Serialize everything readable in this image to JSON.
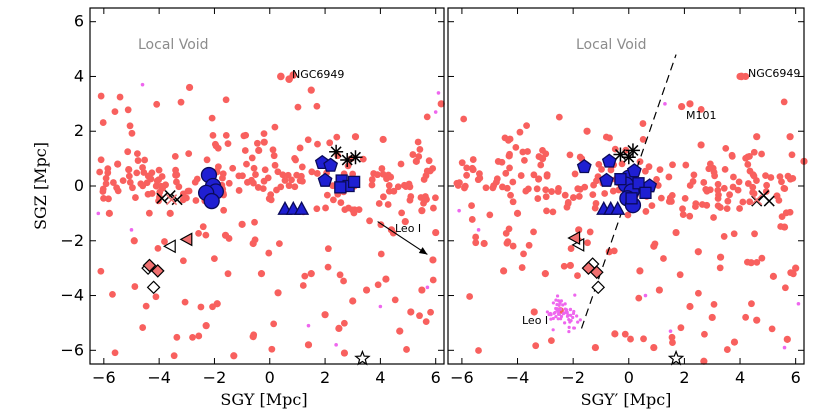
{
  "chart_data": [
    {
      "type": "scatter",
      "panel": "left",
      "xlabel": "SGY  [Mpc]",
      "ylabel": "SGZ  [Mpc]",
      "xlim": [
        -6.5,
        6.3
      ],
      "ylim": [
        -6.5,
        6.5
      ],
      "xticks": [
        "−6",
        "−4",
        "−2",
        "0",
        "2",
        "4",
        "6"
      ],
      "yticks": [
        "6",
        "4",
        "2",
        "0",
        "−2",
        "−4",
        "−6"
      ],
      "annotations": {
        "region": "Local Void",
        "ngc": "NGC6949",
        "leo": "Leo I"
      },
      "arrow": {
        "from": [
          3.9,
          -1.3
        ],
        "to": [
          5.7,
          -2.5
        ]
      },
      "background_seed": 7,
      "background_count": 260,
      "background": [
        [
          -2.9,
          3.6
        ],
        [
          -0.4,
          1.3
        ],
        [
          -0.2,
          1.6
        ],
        [
          1.5,
          3.5
        ],
        [
          3.1,
          1.8
        ],
        [
          4.1,
          1.7
        ],
        [
          5.3,
          0.9
        ],
        [
          6.2,
          3.0
        ],
        [
          4.4,
          -1.6
        ],
        [
          4.9,
          -1.3
        ],
        [
          5.5,
          -0.9
        ],
        [
          6.0,
          -1.7
        ],
        [
          -5.1,
          0.6
        ],
        [
          -5.5,
          0.8
        ],
        [
          -4.1,
          0.0
        ],
        [
          -3.4,
          0.4
        ],
        [
          -1.6,
          -1.8
        ],
        [
          -1.0,
          -1.4
        ],
        [
          -0.6,
          -2.1
        ],
        [
          1.5,
          -3.2
        ],
        [
          2.0,
          -4.7
        ],
        [
          2.5,
          -5.2
        ],
        [
          1.4,
          -5.8
        ],
        [
          3.0,
          -4.2
        ],
        [
          3.5,
          -3.8
        ],
        [
          4.2,
          -3.4
        ],
        [
          5.5,
          -3.8
        ],
        [
          5.1,
          -4.6
        ],
        [
          -1.9,
          -4.3
        ],
        [
          -2.3,
          -5.1
        ],
        [
          -0.6,
          -5.5
        ],
        [
          -1.3,
          -6.2
        ],
        [
          2.7,
          -6.1
        ],
        [
          0.3,
          -3.9
        ],
        [
          -0.3,
          -3.2
        ],
        [
          4.7,
          -5.3
        ],
        [
          5.9,
          -2.7
        ],
        [
          -5.8,
          -1.0
        ],
        [
          -4.9,
          -2.0
        ],
        [
          -3.6,
          -1.0
        ]
      ],
      "satellites": [
        [
          -6.2,
          -1.0
        ],
        [
          -5.0,
          -1.6
        ],
        [
          1.4,
          -5.1
        ],
        [
          2.4,
          -5.8
        ],
        [
          4.0,
          -4.4
        ],
        [
          5.7,
          -3.7
        ],
        [
          6.0,
          2.7
        ],
        [
          6.1,
          3.4
        ],
        [
          -4.6,
          3.7
        ]
      ],
      "ngc_points": [
        [
          0.4,
          4.0
        ],
        [
          0.7,
          3.9
        ],
        [
          0.85,
          4.05
        ]
      ],
      "groups": {
        "circles": [
          [
            -2.2,
            0.4
          ],
          [
            -2.05,
            0.0
          ],
          [
            -1.95,
            -0.2
          ],
          [
            -2.3,
            -0.25
          ],
          [
            -2.1,
            -0.55
          ]
        ],
        "pentagons": [
          [
            1.9,
            0.85
          ],
          [
            2.2,
            0.75
          ],
          [
            2.0,
            0.2
          ]
        ],
        "squares": [
          [
            2.6,
            0.2
          ],
          [
            2.85,
            0.0
          ],
          [
            3.05,
            0.15
          ],
          [
            2.55,
            -0.05
          ]
        ],
        "triangles": [
          [
            0.55,
            -0.85
          ],
          [
            0.85,
            -0.85
          ],
          [
            1.15,
            -0.85
          ]
        ],
        "asterisks": [
          [
            2.4,
            1.25
          ],
          [
            2.8,
            0.95
          ],
          [
            3.1,
            1.05
          ]
        ],
        "crosses": [
          [
            -3.9,
            -0.45
          ],
          [
            -3.6,
            -0.35
          ],
          [
            -3.35,
            -0.5
          ]
        ],
        "x_red": [
          [
            -3.55,
            -0.5
          ]
        ],
        "tri_left": [
          [
            -3.6,
            -2.2
          ]
        ],
        "tri_left_red": [
          [
            -3.0,
            -1.95
          ]
        ],
        "diamonds": [
          [
            -4.2,
            -3.7
          ],
          [
            -4.4,
            -3.0
          ]
        ],
        "diamonds_red": [
          [
            -4.35,
            -2.9
          ],
          [
            -4.05,
            -3.1
          ]
        ],
        "stars": [
          [
            3.35,
            -6.3
          ]
        ]
      }
    },
    {
      "type": "scatter",
      "panel": "right",
      "xlabel": "SGY′  [Mpc]",
      "ylabel": "",
      "xlim": [
        -6.5,
        6.3
      ],
      "ylim": [
        -6.5,
        6.5
      ],
      "xticks": [
        "−6",
        "−4",
        "−2",
        "0",
        "2",
        "4",
        "6"
      ],
      "annotations": {
        "region": "Local Void",
        "ngc": "NGC6949",
        "m101": "M101",
        "leo": "Leo I"
      },
      "dashed_line": {
        "from": [
          -1.7,
          -5.2
        ],
        "to": [
          1.7,
          4.8
        ]
      },
      "background_seed": 19,
      "background_count": 255,
      "background": [
        [
          4.0,
          4.0
        ],
        [
          4.2,
          4.0
        ],
        [
          1.9,
          2.9
        ],
        [
          2.2,
          3.0
        ],
        [
          2.6,
          1.5
        ],
        [
          4.6,
          1.8
        ],
        [
          5.8,
          1.8
        ],
        [
          6.3,
          0.9
        ],
        [
          -1.5,
          2.0
        ],
        [
          -3.1,
          1.0
        ],
        [
          -4.3,
          1.1
        ],
        [
          -5.6,
          0.6
        ],
        [
          -1.8,
          -1.6
        ],
        [
          -1.8,
          -2.0
        ],
        [
          -0.7,
          -2.4
        ],
        [
          0.9,
          -2.2
        ],
        [
          1.7,
          -1.7
        ],
        [
          2.5,
          -2.4
        ],
        [
          3.3,
          -2.6
        ],
        [
          4.4,
          -2.8
        ],
        [
          5.2,
          -3.3
        ],
        [
          6.0,
          -3.0
        ],
        [
          5.6,
          -1.5
        ],
        [
          -4.5,
          -3.1
        ],
        [
          -5.2,
          -2.1
        ],
        [
          -4.0,
          -1.0
        ],
        [
          -3.0,
          -3.2
        ],
        [
          -2.1,
          -2.9
        ],
        [
          0.4,
          -3.1
        ],
        [
          1.1,
          -3.8
        ],
        [
          2.2,
          -4.4
        ],
        [
          3.0,
          -4.8
        ],
        [
          3.8,
          -5.7
        ],
        [
          4.6,
          -4.9
        ],
        [
          -0.5,
          -5.4
        ],
        [
          -1.2,
          -5.9
        ],
        [
          0.9,
          -5.9
        ],
        [
          2.7,
          -6.4
        ],
        [
          -3.4,
          -4.6
        ],
        [
          5.7,
          -5.6
        ]
      ],
      "satellites": [
        [
          1.3,
          3.0
        ],
        [
          1.5,
          -5.3
        ],
        [
          0.6,
          -4.0
        ],
        [
          6.1,
          -4.3
        ],
        [
          5.6,
          -5.9
        ],
        [
          -6.1,
          -0.9
        ],
        [
          -5.4,
          -1.6
        ]
      ],
      "leo_cluster_center": [
        -2.4,
        -4.6
      ],
      "leo_cluster_count": 60,
      "ngc_points": [
        [
          4.05,
          4.0
        ]
      ],
      "groups": {
        "circles": [
          [
            0.0,
            0.3
          ],
          [
            -0.1,
            0.05
          ],
          [
            0.1,
            -0.2
          ],
          [
            -0.05,
            -0.45
          ],
          [
            0.15,
            -0.7
          ]
        ],
        "pentagons": [
          [
            -1.6,
            0.7
          ],
          [
            -0.7,
            0.9
          ],
          [
            -0.8,
            0.2
          ],
          [
            0.2,
            0.55
          ],
          [
            0.75,
            0.0
          ]
        ],
        "squares": [
          [
            -0.3,
            0.25
          ],
          [
            0.35,
            0.1
          ],
          [
            0.1,
            -0.45
          ],
          [
            0.6,
            -0.25
          ]
        ],
        "triangles": [
          [
            -0.9,
            -0.85
          ],
          [
            -0.65,
            -0.85
          ],
          [
            -0.4,
            -0.85
          ]
        ],
        "asterisks": [
          [
            -0.3,
            1.15
          ],
          [
            0.0,
            1.05
          ],
          [
            0.15,
            1.3
          ]
        ],
        "crosses": [
          [
            4.6,
            -0.55
          ],
          [
            4.85,
            -0.35
          ],
          [
            5.05,
            -0.55
          ]
        ],
        "x_red": [
          [
            4.6,
            -0.5
          ]
        ],
        "tri_left": [
          [
            -1.8,
            -2.15
          ]
        ],
        "tri_left_red": [
          [
            -1.95,
            -1.9
          ]
        ],
        "diamonds": [
          [
            -1.3,
            -2.85
          ],
          [
            -1.1,
            -3.7
          ]
        ],
        "diamonds_red": [
          [
            -1.45,
            -3.0
          ],
          [
            -1.15,
            -3.15
          ]
        ],
        "stars": [
          [
            1.7,
            -6.3
          ]
        ]
      }
    }
  ],
  "colors": {
    "background_points": "#f8605e",
    "satellite_points": "#ee66ee",
    "group_fill": "#1f1fd2",
    "group_edge": "#0a0a5a",
    "red_marker": "#f07070",
    "region_text": "#8c8c8c"
  }
}
